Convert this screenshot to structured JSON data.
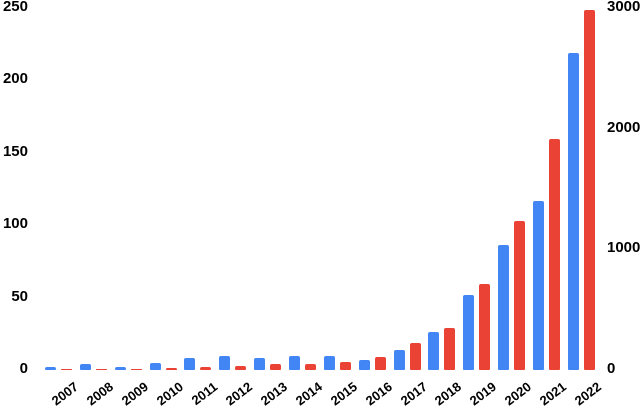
{
  "chart_data": {
    "type": "bar",
    "categories": [
      "2007",
      "2008",
      "2009",
      "2010",
      "2011",
      "2012",
      "2013",
      "2014",
      "2015",
      "2016",
      "2017",
      "2018",
      "2019",
      "2020",
      "2021",
      "2022"
    ],
    "series": [
      {
        "name": "blue-series",
        "axis": "left",
        "color": "#4285f4",
        "values": [
          2,
          4,
          2,
          5,
          8,
          10,
          8,
          10,
          10,
          7,
          14,
          26,
          52,
          86,
          117,
          219
        ]
      },
      {
        "name": "red-series",
        "axis": "right",
        "color": "#ea4335",
        "values": [
          8,
          10,
          6,
          20,
          27,
          35,
          50,
          48,
          70,
          105,
          220,
          345,
          710,
          1235,
          1915,
          2985
        ]
      }
    ],
    "axes": {
      "left": {
        "min": 0,
        "max": 250,
        "ticks": [
          "0",
          "50",
          "100",
          "150",
          "200",
          "250"
        ]
      },
      "right": {
        "min": 0,
        "max": 3000,
        "ticks": [
          "0",
          "1000",
          "2000",
          "3000"
        ]
      }
    },
    "grid": false,
    "legend_position": "none",
    "background_color": "#ffffff",
    "label_color": "#000000"
  }
}
